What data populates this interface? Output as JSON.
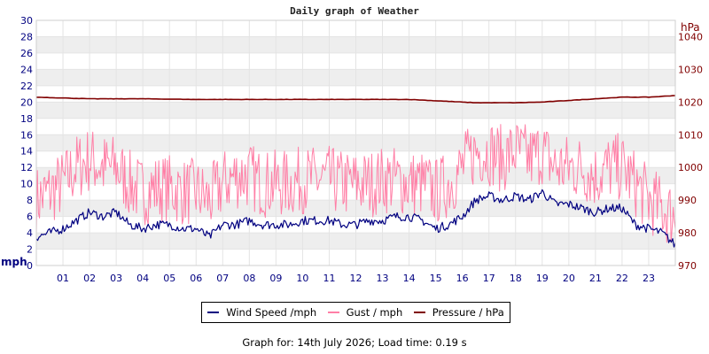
{
  "chart_data": {
    "type": "line",
    "title": "Daily graph of Weather",
    "xlabel": "",
    "ylabel": "mph",
    "ylabel_right": "hPa",
    "ylim": [
      0,
      30
    ],
    "ylim_right": [
      970,
      1045
    ],
    "y_ticks": [
      0,
      2,
      4,
      6,
      8,
      10,
      12,
      14,
      16,
      18,
      20,
      22,
      24,
      26,
      28,
      30
    ],
    "y_right_ticks": [
      970,
      980,
      990,
      1000,
      1010,
      1020,
      1030,
      1040
    ],
    "x_ticks": [
      "01",
      "02",
      "03",
      "04",
      "05",
      "06",
      "07",
      "08",
      "09",
      "10",
      "11",
      "12",
      "13",
      "14",
      "15",
      "16",
      "17",
      "18",
      "19",
      "20",
      "21",
      "22",
      "23"
    ],
    "x_range_hours": [
      0,
      24
    ],
    "grid": true,
    "legend_position": "bottom",
    "series": [
      {
        "name": "Wind Speed /mph",
        "axis": "left",
        "color": "#000080",
        "x": [
          0,
          0.5,
          1,
          1.5,
          2,
          2.5,
          3,
          3.5,
          4,
          4.5,
          5,
          5.5,
          6,
          6.5,
          7,
          7.5,
          8,
          8.5,
          9,
          9.5,
          10,
          10.5,
          11,
          11.5,
          12,
          12.5,
          13,
          13.5,
          14,
          14.5,
          15,
          15.5,
          16,
          16.5,
          17,
          17.5,
          18,
          18.5,
          19,
          19.5,
          20,
          20.5,
          21,
          21.5,
          22,
          22.5,
          23,
          23.5,
          24
        ],
        "values": [
          3.5,
          4,
          4.5,
          5.5,
          6.5,
          6,
          6.5,
          5,
          4.5,
          5,
          5,
          4.5,
          4.5,
          3.5,
          5,
          5,
          5.5,
          5,
          5,
          5,
          5.5,
          5.5,
          5.5,
          5,
          5,
          5.5,
          5.5,
          6,
          6,
          5.5,
          4.5,
          5,
          6,
          8,
          8.5,
          8,
          8.5,
          8,
          9,
          7.5,
          7.5,
          7,
          6.5,
          7,
          7,
          5,
          4.5,
          4,
          2.5
        ]
      },
      {
        "name": "Gust / mph",
        "axis": "left",
        "color": "#ff7fa6",
        "x": [
          0,
          0.5,
          1,
          1.5,
          2,
          2.5,
          3,
          3.5,
          4,
          4.5,
          5,
          5.5,
          6,
          6.5,
          7,
          7.5,
          8,
          8.5,
          9,
          9.5,
          10,
          10.5,
          11,
          11.5,
          12,
          12.5,
          13,
          13.5,
          14,
          14.5,
          15,
          15.5,
          16,
          16.5,
          17,
          17.5,
          18,
          18.5,
          19,
          19.5,
          20,
          20.5,
          21,
          21.5,
          22,
          22.5,
          23,
          23.5,
          24
        ],
        "values": [
          8,
          9,
          10,
          12,
          13,
          12,
          12,
          10,
          9,
          9.5,
          9.5,
          9,
          9,
          8,
          10,
          11,
          11,
          10,
          10,
          10,
          10.5,
          10.5,
          10.5,
          10,
          10,
          10,
          10.5,
          10.5,
          10,
          10,
          9,
          10,
          12,
          14,
          14,
          13,
          14,
          13,
          14,
          12,
          12,
          12,
          11,
          12,
          12,
          10,
          8,
          7,
          6
        ]
      },
      {
        "name": "Pressure / hPa",
        "axis": "right",
        "color": "#800000",
        "x": [
          0,
          2,
          4,
          6,
          8,
          10,
          12,
          14,
          16,
          16.5,
          17,
          18,
          19,
          20,
          21,
          22,
          23,
          24
        ],
        "values": [
          1021.5,
          1021,
          1021,
          1020.8,
          1020.8,
          1020.8,
          1020.8,
          1020.8,
          1020,
          1019.8,
          1019.8,
          1019.8,
          1020,
          1020.5,
          1021,
          1021.5,
          1021.5,
          1022
        ]
      }
    ]
  },
  "footer_text": "Graph for: 14th July 2026; Load time: 0.19 s"
}
